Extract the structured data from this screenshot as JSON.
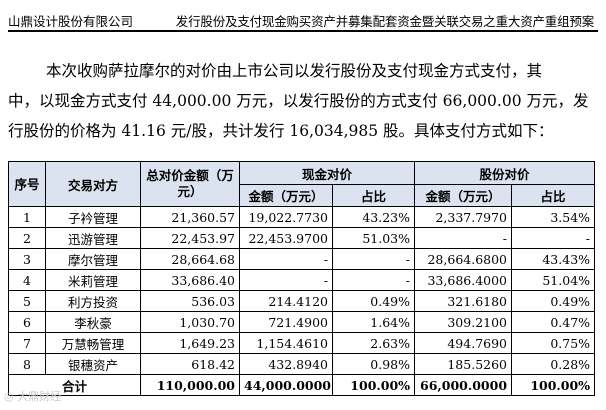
{
  "header": {
    "company": "山鼎设计股份有限公司",
    "doc_title": "发行股份及支付现金购买资产并募集配套资金暨关联交易之重大资产重组预案"
  },
  "paragraph": {
    "line1": "本次收购萨拉摩尔的对价由上市公司以发行股份及支付现金方式支付，其",
    "line2": "中，以现金方式支付 44,000.00 万元，以发行股份的方式支付 66,000.00 万元，发",
    "line3": "行股份的价格为 41.16 元/股，共计发行 16,034,985 股。具体支付方式如下："
  },
  "table": {
    "headers": {
      "seq": "序号",
      "party": "交易对方",
      "total": "总对价金额（万元）",
      "cash_group": "现金对价",
      "share_group": "股份对价",
      "amount": "金额（万元）",
      "ratio": "占比"
    },
    "rows": [
      {
        "seq": "1",
        "party": "子衿管理",
        "total": "21,360.57",
        "cash_amt": "19,022.7730",
        "cash_ratio": "43.23%",
        "share_amt": "2,337.7970",
        "share_ratio": "3.54%"
      },
      {
        "seq": "2",
        "party": "迅游管理",
        "total": "22,453.97",
        "cash_amt": "22,453.9700",
        "cash_ratio": "51.03%",
        "share_amt": "-",
        "share_ratio": "-"
      },
      {
        "seq": "3",
        "party": "摩尔管理",
        "total": "28,664.68",
        "cash_amt": "-",
        "cash_ratio": "-",
        "share_amt": "28,664.6800",
        "share_ratio": "43.43%"
      },
      {
        "seq": "4",
        "party": "米莉管理",
        "total": "33,686.40",
        "cash_amt": "-",
        "cash_ratio": "-",
        "share_amt": "33,686.4000",
        "share_ratio": "51.04%"
      },
      {
        "seq": "5",
        "party": "利方投资",
        "total": "536.03",
        "cash_amt": "214.4120",
        "cash_ratio": "0.49%",
        "share_amt": "321.6180",
        "share_ratio": "0.49%"
      },
      {
        "seq": "6",
        "party": "李秋豪",
        "total": "1,030.70",
        "cash_amt": "721.4900",
        "cash_ratio": "1.64%",
        "share_amt": "309.2100",
        "share_ratio": "0.47%"
      },
      {
        "seq": "7",
        "party": "万慧畅管理",
        "total": "1,649.23",
        "cash_amt": "1,154.4610",
        "cash_ratio": "2.63%",
        "share_amt": "494.7690",
        "share_ratio": "0.75%"
      },
      {
        "seq": "8",
        "party": "银穗资产",
        "total": "618.42",
        "cash_amt": "432.8940",
        "cash_ratio": "0.98%",
        "share_amt": "185.5260",
        "share_ratio": "0.28%"
      }
    ],
    "total_row": {
      "label": "合计",
      "total": "110,000.00",
      "cash_amt": "44,000.0000",
      "cash_ratio": "100.00%",
      "share_amt": "66,000.0000",
      "share_ratio": "100.00%"
    }
  },
  "watermark": "◎ 大鼎财经"
}
